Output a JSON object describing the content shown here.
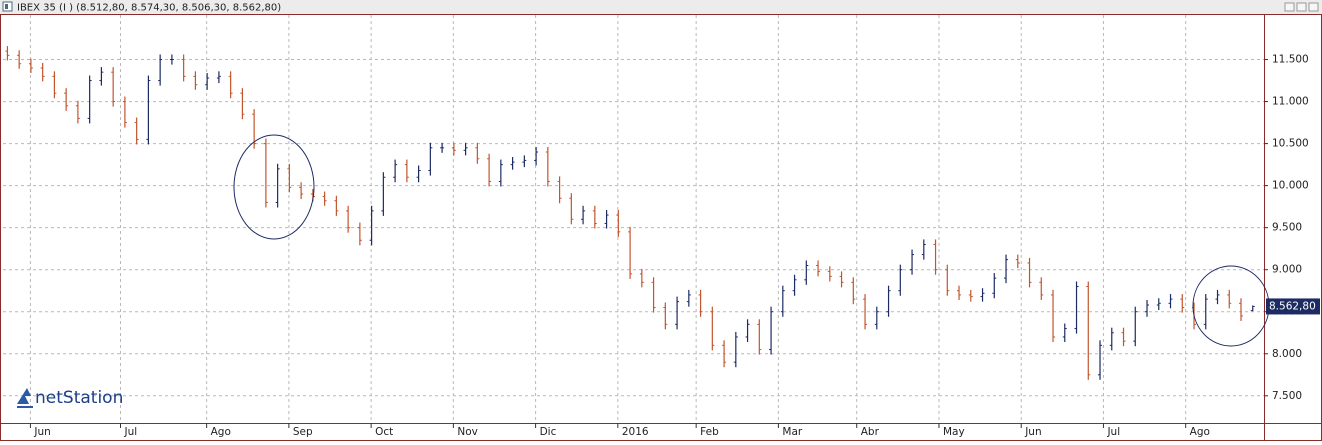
{
  "chart_data": {
    "type": "ohlc",
    "title": "IBEX 35 (I ) (8.512,80, 8.574,30, 8.506,30, 8.562,80)",
    "watermark": "netStation",
    "up_color": "#1d2b63",
    "down_color": "#c2552d",
    "grid": true,
    "xlim": [
      -1,
      321
    ],
    "ylim": [
      7200,
      12030
    ],
    "xticks": [
      {
        "value": 6,
        "label": "Jun"
      },
      {
        "value": 29,
        "label": "Jul"
      },
      {
        "value": 51,
        "label": "Ago"
      },
      {
        "value": 72,
        "label": "Sep"
      },
      {
        "value": 93,
        "label": "Oct"
      },
      {
        "value": 114,
        "label": "Nov"
      },
      {
        "value": 135,
        "label": "Dic"
      },
      {
        "value": 156,
        "label": "2016"
      },
      {
        "value": 176,
        "label": "Feb"
      },
      {
        "value": 197,
        "label": "Mar"
      },
      {
        "value": 217,
        "label": "Abr"
      },
      {
        "value": 238,
        "label": "May"
      },
      {
        "value": 259,
        "label": "Jun"
      },
      {
        "value": 280,
        "label": "Jul"
      },
      {
        "value": 301,
        "label": "Ago"
      }
    ],
    "yticks": [
      {
        "value": 7500,
        "label": "7.500"
      },
      {
        "value": 8000,
        "label": "8.000"
      },
      {
        "value": 8500,
        "label": "8.500"
      },
      {
        "value": 9000,
        "label": "9.000"
      },
      {
        "value": 9500,
        "label": "9.500"
      },
      {
        "value": 10000,
        "label": "10.000"
      },
      {
        "value": 10500,
        "label": "10.500"
      },
      {
        "value": 11000,
        "label": "11.000"
      },
      {
        "value": 11500,
        "label": "11.500"
      }
    ],
    "last_price": {
      "value": 8562.8,
      "label": "8.562,80"
    },
    "x": [
      0,
      3,
      6,
      9,
      12,
      15,
      18,
      21,
      24,
      27,
      30,
      33,
      36,
      39,
      42,
      45,
      48,
      51,
      54,
      57,
      60,
      63,
      66,
      69,
      72,
      75,
      78,
      81,
      84,
      87,
      90,
      93,
      96,
      99,
      102,
      105,
      108,
      111,
      114,
      117,
      120,
      123,
      126,
      129,
      132,
      135,
      138,
      141,
      144,
      147,
      150,
      153,
      156,
      159,
      162,
      165,
      168,
      171,
      174,
      177,
      180,
      183,
      186,
      189,
      192,
      195,
      198,
      201,
      204,
      207,
      210,
      213,
      216,
      219,
      222,
      225,
      228,
      231,
      234,
      237,
      240,
      243,
      246,
      249,
      252,
      255,
      258,
      261,
      264,
      267,
      270,
      273,
      276,
      279,
      282,
      285,
      288,
      291,
      294,
      297,
      300,
      303,
      306,
      309,
      312,
      315,
      318
    ],
    "open": [
      11600,
      11550,
      11450,
      11400,
      11300,
      11100,
      10950,
      10800,
      11250,
      11350,
      11000,
      10750,
      10550,
      11250,
      11500,
      11500,
      11300,
      11200,
      11280,
      11300,
      11100,
      10850,
      10500,
      9800,
      10200,
      9980,
      9900,
      9870,
      9820,
      9700,
      9500,
      9350,
      9700,
      10100,
      10250,
      10100,
      10180,
      10450,
      10450,
      10420,
      10450,
      10320,
      10050,
      10250,
      10280,
      10300,
      10400,
      10050,
      9850,
      9600,
      9700,
      9550,
      9650,
      9450,
      8950,
      8850,
      8550,
      8350,
      8620,
      8700,
      8500,
      8100,
      7900,
      8200,
      8350,
      8050,
      8500,
      8750,
      8880,
      9050,
      8980,
      8920,
      8850,
      8650,
      8350,
      8500,
      8750,
      9000,
      9180,
      9300,
      9000,
      8750,
      8700,
      8680,
      8720,
      8900,
      9120,
      9080,
      8850,
      8700,
      8200,
      8300,
      8800,
      7750,
      8100,
      8250,
      8150,
      8500,
      8580,
      8600,
      8650,
      8550,
      8350,
      8650,
      8700,
      8600,
      8512.8
    ],
    "high": [
      11660,
      11610,
      11510,
      11460,
      11360,
      11160,
      11010,
      11310,
      11410,
      11410,
      11060,
      10810,
      11310,
      11560,
      11560,
      11560,
      11360,
      11340,
      11360,
      11360,
      11160,
      10910,
      10560,
      10260,
      10260,
      10040,
      9960,
      9930,
      9880,
      9760,
      9560,
      9760,
      10160,
      10310,
      10310,
      10240,
      10510,
      10510,
      10510,
      10510,
      10510,
      10380,
      10310,
      10340,
      10360,
      10460,
      10460,
      10110,
      9910,
      9760,
      9760,
      9710,
      9710,
      9510,
      9010,
      8910,
      8610,
      8680,
      8760,
      8760,
      8560,
      8160,
      8260,
      8410,
      8410,
      8560,
      8810,
      8940,
      9110,
      9110,
      9040,
      8980,
      8910,
      8710,
      8560,
      8810,
      9060,
      9240,
      9360,
      9360,
      9060,
      8810,
      8760,
      8780,
      8960,
      9180,
      9180,
      9140,
      8910,
      8760,
      8360,
      8860,
      8860,
      8160,
      8310,
      8310,
      8560,
      8640,
      8660,
      8710,
      8710,
      8610,
      8710,
      8760,
      8760,
      8660,
      8574.3
    ],
    "low": [
      11490,
      11390,
      11340,
      11240,
      11040,
      10890,
      10740,
      10740,
      11190,
      10940,
      10690,
      10490,
      10490,
      11190,
      11440,
      11240,
      11140,
      11140,
      11220,
      11040,
      10790,
      10440,
      9740,
      9740,
      9920,
      9840,
      9810,
      9760,
      9640,
      9440,
      9290,
      9290,
      9640,
      10040,
      10040,
      10040,
      10120,
      10390,
      10360,
      10360,
      10260,
      9990,
      9990,
      10190,
      10220,
      10240,
      9990,
      9790,
      9540,
      9540,
      9490,
      9490,
      9390,
      8890,
      8790,
      8490,
      8290,
      8290,
      8560,
      8440,
      8040,
      7840,
      7840,
      8140,
      7990,
      7990,
      8440,
      8690,
      8820,
      8920,
      8860,
      8790,
      8590,
      8290,
      8290,
      8440,
      8690,
      8940,
      9120,
      8940,
      8690,
      8640,
      8620,
      8620,
      8660,
      8840,
      9020,
      8790,
      8640,
      8140,
      8140,
      8240,
      7690,
      7690,
      8040,
      8090,
      8090,
      8440,
      8520,
      8540,
      8490,
      8290,
      8290,
      8590,
      8540,
      8390,
      8506.3
    ],
    "close": [
      11550,
      11450,
      11400,
      11300,
      11100,
      10950,
      10800,
      11250,
      11350,
      11000,
      10750,
      10550,
      11250,
      11500,
      11500,
      11300,
      11200,
      11280,
      11300,
      11100,
      10850,
      10500,
      9800,
      10200,
      9980,
      9900,
      9870,
      9820,
      9700,
      9500,
      9350,
      9700,
      10100,
      10250,
      10100,
      10180,
      10450,
      10450,
      10420,
      10450,
      10320,
      10050,
      10250,
      10280,
      10300,
      10400,
      10050,
      9850,
      9600,
      9700,
      9550,
      9650,
      9450,
      8950,
      8850,
      8550,
      8350,
      8620,
      8700,
      8500,
      8100,
      7900,
      8200,
      8350,
      8050,
      8500,
      8750,
      8880,
      9050,
      8980,
      8920,
      8850,
      8650,
      8350,
      8500,
      8750,
      9000,
      9180,
      9300,
      9000,
      8750,
      8700,
      8680,
      8720,
      8900,
      9120,
      9080,
      8850,
      8700,
      8200,
      8300,
      8800,
      7750,
      8100,
      8250,
      8150,
      8500,
      8580,
      8600,
      8650,
      8550,
      8350,
      8650,
      8700,
      8600,
      8450,
      8562.8
    ]
  }
}
